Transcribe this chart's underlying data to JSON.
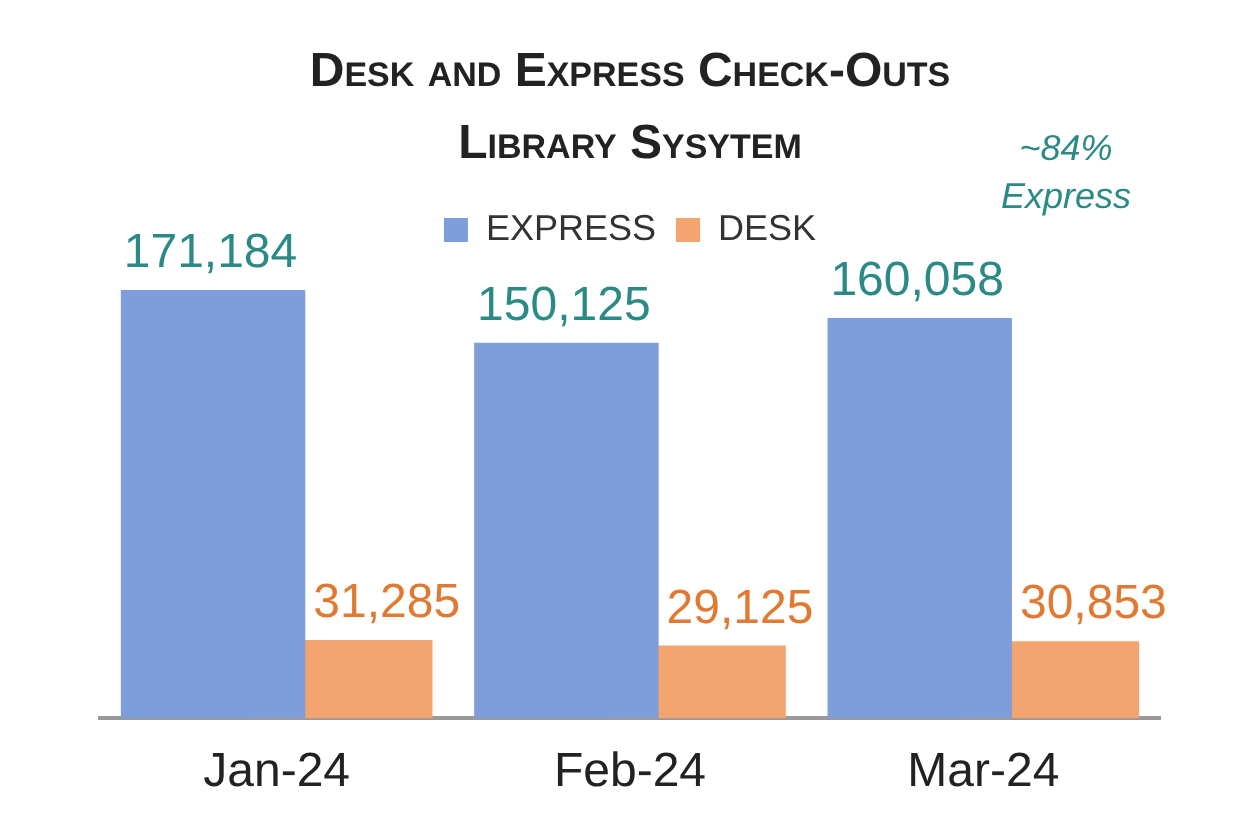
{
  "chart_data": {
    "type": "bar",
    "title": "Desk and Express Check-Outs",
    "subtitle": "Library Sysytem",
    "categories": [
      "Jan-24",
      "Feb-24",
      "Mar-24"
    ],
    "series": [
      {
        "name": "EXPRESS",
        "color": "#7e9edb",
        "values": [
          171184,
          150125,
          160058
        ],
        "value_labels": [
          "171,184",
          "150,125",
          "160,058"
        ]
      },
      {
        "name": "DESK",
        "color": "#f4a46e",
        "values": [
          31285,
          29125,
          30853
        ],
        "value_labels": [
          "31,285",
          "29,125",
          "30,853"
        ]
      }
    ],
    "legend": "top",
    "grid": false,
    "annotations": [
      "~84% Express"
    ]
  }
}
